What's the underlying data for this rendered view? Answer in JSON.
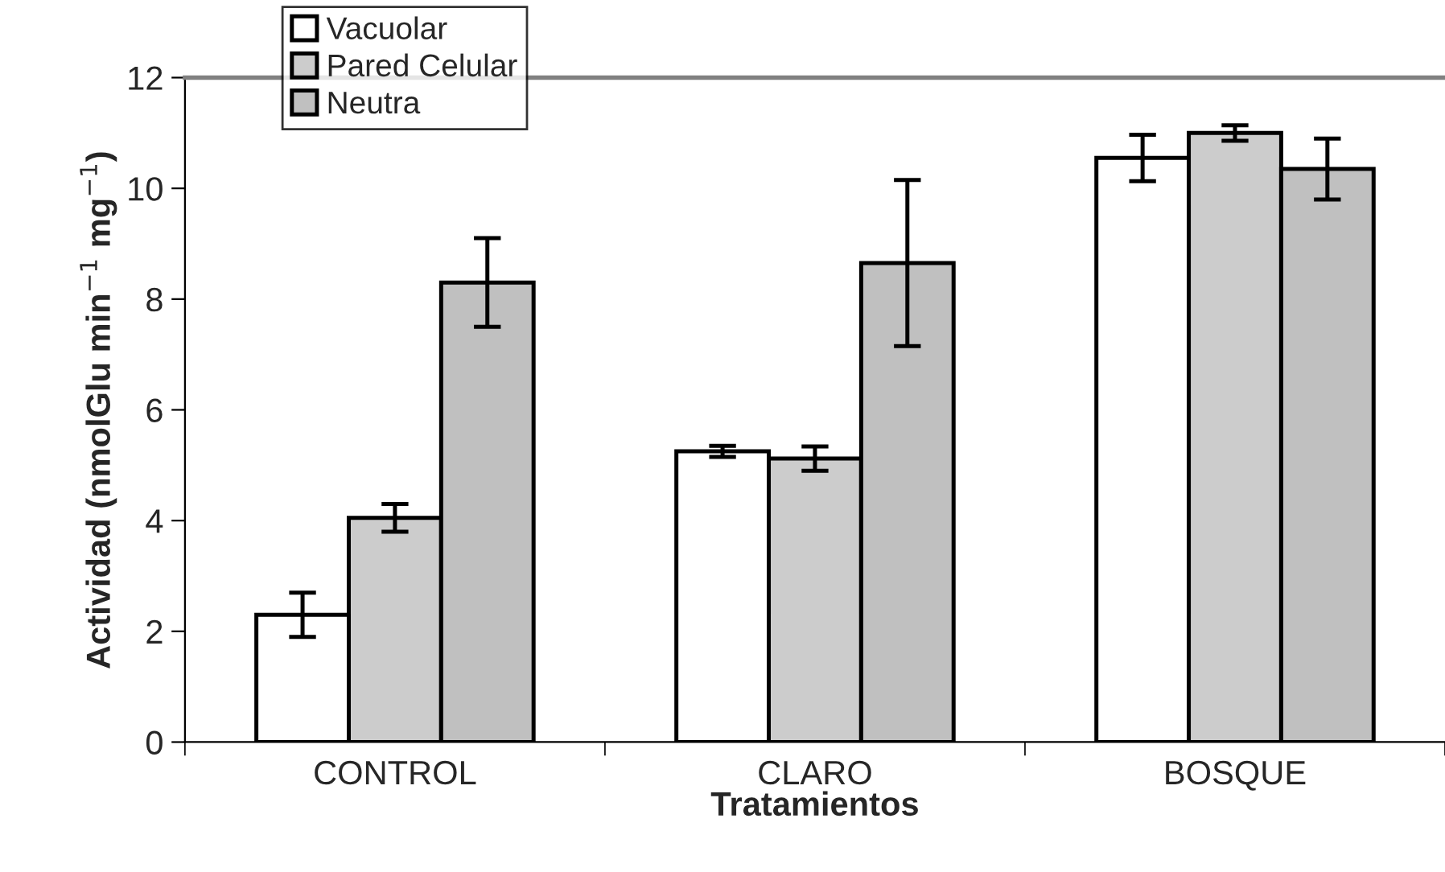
{
  "chart_data": {
    "type": "bar",
    "xlabel": "Tratamientos",
    "ylabel": "Actividad (nmolGlu min$^{−1}$ mg$^{−1}$)",
    "categories": [
      "CONTROL",
      "CLARO",
      "BOSQUE"
    ],
    "series": [
      {
        "name": "Vacuolar",
        "color": "#ffffff",
        "values": [
          2.3,
          5.25,
          10.55
        ],
        "errors": [
          0.4,
          0.1,
          0.42
        ]
      },
      {
        "name": "Pared Celular",
        "color": "#cccccc",
        "values": [
          4.05,
          5.12,
          11.0
        ],
        "errors": [
          0.25,
          0.22,
          0.14
        ]
      },
      {
        "name": "Neutra",
        "color": "#c0c0c0",
        "values": [
          8.3,
          8.65,
          10.35
        ],
        "errors": [
          0.8,
          1.5,
          0.55
        ]
      }
    ],
    "ylim": [
      0,
      12
    ],
    "yticks": [
      0,
      2,
      4,
      6,
      8,
      10,
      12
    ],
    "grid": false,
    "legend": "top left"
  }
}
